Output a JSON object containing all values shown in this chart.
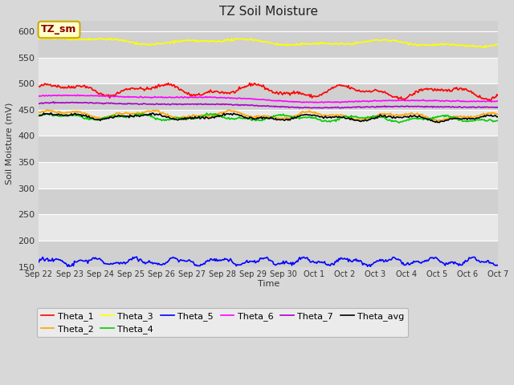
{
  "title": "TZ Soil Moisture",
  "ylabel": "Soil Moisture (mV)",
  "xlabel": "Time",
  "label_box": "TZ_sm",
  "ylim": [
    150,
    620
  ],
  "yticks": [
    150,
    200,
    250,
    300,
    350,
    400,
    450,
    500,
    550,
    600
  ],
  "x_labels": [
    "Sep 22",
    "Sep 23",
    "Sep 24",
    "Sep 25",
    "Sep 26",
    "Sep 27",
    "Sep 28",
    "Sep 29",
    "Sep 30",
    "Oct 1",
    "Oct 2",
    "Oct 3",
    "Oct 4",
    "Oct 5",
    "Oct 6",
    "Oct 7"
  ],
  "n_points": 480,
  "series_order": [
    "Theta_1",
    "Theta_2",
    "Theta_3",
    "Theta_4",
    "Theta_5",
    "Theta_6",
    "Theta_7",
    "Theta_avg"
  ],
  "series": {
    "Theta_1": {
      "color": "#ff0000",
      "base": 490,
      "amp": 8,
      "freq": 0.8,
      "noise": 1.5,
      "trend": -8
    },
    "Theta_2": {
      "color": "#ffa500",
      "base": 443,
      "amp": 5,
      "freq": 0.9,
      "noise": 1.0,
      "trend": -7
    },
    "Theta_3": {
      "color": "#ffff00",
      "base": 583,
      "amp": 4,
      "freq": 0.5,
      "noise": 1.0,
      "trend": -8
    },
    "Theta_4": {
      "color": "#00cc00",
      "base": 437,
      "amp": 4,
      "freq": 1.0,
      "noise": 1.0,
      "trend": -5
    },
    "Theta_5": {
      "color": "#0000ff",
      "base": 160,
      "amp": 5,
      "freq": 1.8,
      "noise": 1.5,
      "trend": 0
    },
    "Theta_6": {
      "color": "#ff00ff",
      "base": 475,
      "amp": 3,
      "freq": 0.2,
      "noise": 0.5,
      "trend": -10
    },
    "Theta_7": {
      "color": "#aa00cc",
      "base": 462,
      "amp": 2,
      "freq": 0.2,
      "noise": 0.5,
      "trend": -8
    },
    "Theta_avg": {
      "color": "#000000",
      "base": 438,
      "amp": 4,
      "freq": 0.9,
      "noise": 1.0,
      "trend": -5
    }
  },
  "bg_color": "#d8d8d8",
  "band_colors": [
    "#d0d0d0",
    "#e8e8e8"
  ],
  "legend_box_facecolor": "#ffffcc",
  "legend_box_edgecolor": "#ccaa00"
}
